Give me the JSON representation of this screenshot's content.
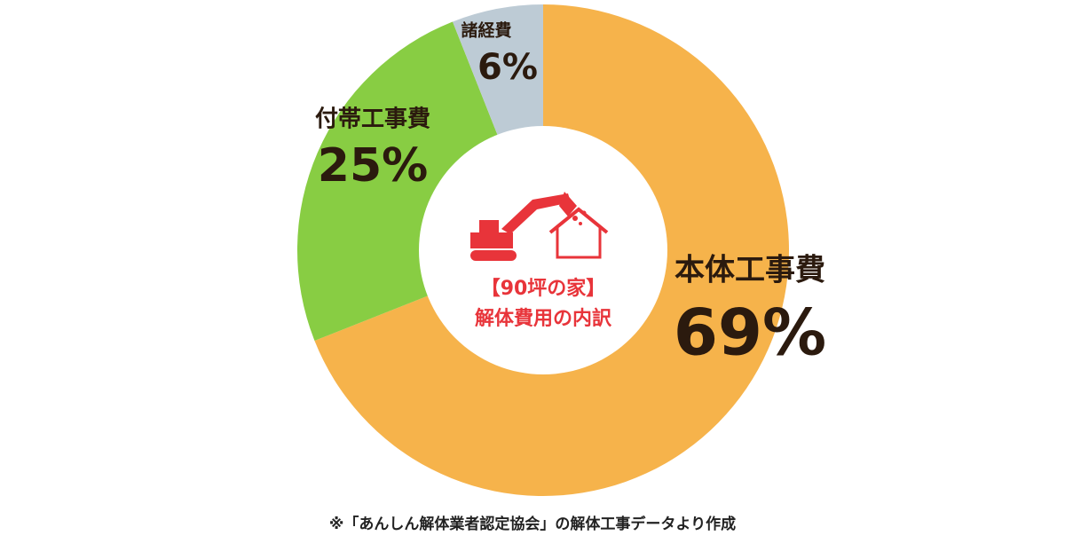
{
  "chart_data": {
    "type": "donut",
    "categories": [
      "本体工事費",
      "付帯工事費",
      "諸経費"
    ],
    "values": [
      69,
      25,
      6
    ],
    "value_labels": [
      "69%",
      "25%",
      "6%"
    ],
    "colors": [
      "#f6b34b",
      "#88cd43",
      "#bdcbd5"
    ],
    "center_text": [
      "【90坪の家】",
      "解体費用の内訳"
    ],
    "footnote": "※「あんしん解体業者認定協会」の解体工事データより作成"
  }
}
